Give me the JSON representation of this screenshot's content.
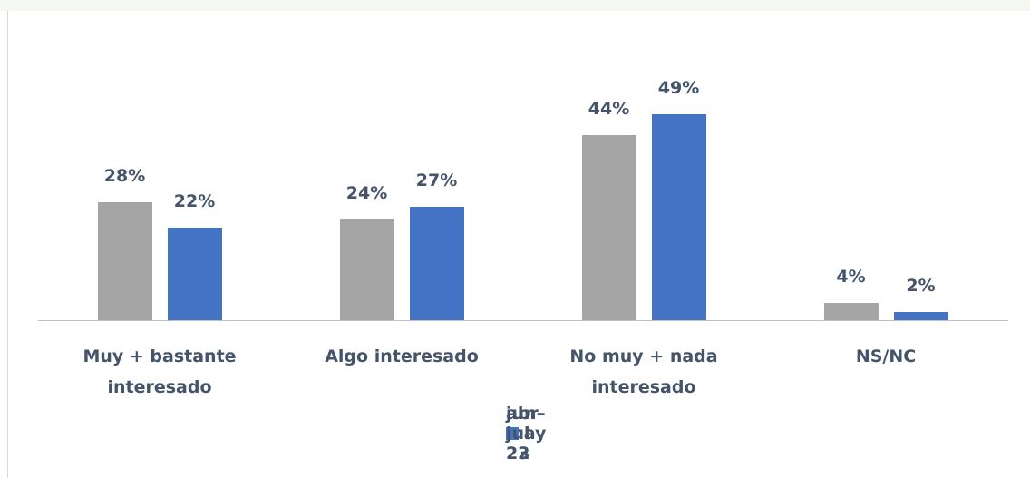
{
  "chart_data": {
    "type": "bar",
    "categories": [
      "Muy + bastante interesado",
      "Algo interesado",
      "No muy + nada interesado",
      "NS/NC"
    ],
    "series": [
      {
        "name": "abr-may 22",
        "color": "#a5a5a5",
        "values": [
          28,
          24,
          44,
          4
        ],
        "value_labels": [
          "28%",
          "24%",
          "44%",
          "4%"
        ]
      },
      {
        "name": "jun-jul 23",
        "color": "#4472c4",
        "values": [
          22,
          27,
          49,
          2
        ],
        "value_labels": [
          "22%",
          "27%",
          "49%",
          "2%"
        ]
      }
    ],
    "legend": "bottom"
  }
}
